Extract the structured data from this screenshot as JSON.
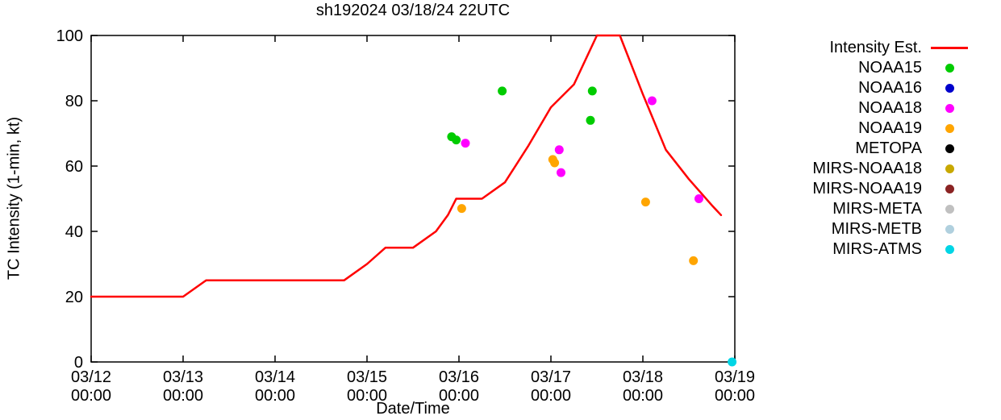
{
  "chart_data": {
    "type": "line+scatter",
    "title": "sh192024 03/18/24 22UTC",
    "xlabel": "Date/Time",
    "ylabel": "TC Intensity (1-min, kt)",
    "xlim": [
      0,
      7
    ],
    "ylim": [
      0,
      100
    ],
    "x_unit": "days since 03/12 00:00 UTC",
    "grid": "off",
    "legend_position": "right-outside",
    "x_ticks": [
      {
        "v": 0,
        "date": "03/12",
        "time": "00:00"
      },
      {
        "v": 1,
        "date": "03/13",
        "time": "00:00"
      },
      {
        "v": 2,
        "date": "03/14",
        "time": "00:00"
      },
      {
        "v": 3,
        "date": "03/15",
        "time": "00:00"
      },
      {
        "v": 4,
        "date": "03/16",
        "time": "00:00"
      },
      {
        "v": 5,
        "date": "03/17",
        "time": "00:00"
      },
      {
        "v": 6,
        "date": "03/18",
        "time": "00:00"
      },
      {
        "v": 7,
        "date": "03/19",
        "time": "00:00"
      }
    ],
    "y_ticks": [
      0,
      20,
      40,
      60,
      80,
      100
    ],
    "line_series": {
      "name": "Intensity Est.",
      "color": "#ff0000",
      "points": [
        [
          0,
          20
        ],
        [
          1.0,
          20
        ],
        [
          1.25,
          25
        ],
        [
          2.75,
          25
        ],
        [
          3.0,
          30
        ],
        [
          3.2,
          35
        ],
        [
          3.5,
          35
        ],
        [
          3.75,
          40
        ],
        [
          3.88,
          45
        ],
        [
          3.97,
          50
        ],
        [
          4.25,
          50
        ],
        [
          4.5,
          55
        ],
        [
          4.75,
          66
        ],
        [
          5.0,
          78
        ],
        [
          5.25,
          85
        ],
        [
          5.5,
          100
        ],
        [
          5.75,
          100
        ],
        [
          6.0,
          82
        ],
        [
          6.25,
          65
        ],
        [
          6.5,
          56
        ],
        [
          6.75,
          48
        ],
        [
          6.85,
          45
        ]
      ]
    },
    "scatter_series": [
      {
        "name": "NOAA15",
        "color": "#00cc00",
        "points": [
          [
            3.92,
            69
          ],
          [
            3.97,
            68
          ],
          [
            4.47,
            83
          ],
          [
            5.43,
            74
          ],
          [
            5.45,
            83
          ]
        ]
      },
      {
        "name": "NOAA16",
        "color": "#0000cc",
        "points": []
      },
      {
        "name": "NOAA18",
        "color": "#ff00ff",
        "points": [
          [
            4.07,
            67
          ],
          [
            5.09,
            65
          ],
          [
            5.11,
            58
          ],
          [
            6.1,
            80
          ],
          [
            6.61,
            50
          ]
        ]
      },
      {
        "name": "NOAA19",
        "color": "#ffa500",
        "points": [
          [
            4.03,
            47
          ],
          [
            5.02,
            62
          ],
          [
            5.04,
            61
          ],
          [
            6.03,
            49
          ],
          [
            6.55,
            31
          ]
        ]
      },
      {
        "name": "METOPA",
        "color": "#000000",
        "points": []
      },
      {
        "name": "MIRS-NOAA18",
        "color": "#c8a800",
        "points": []
      },
      {
        "name": "MIRS-NOAA19",
        "color": "#8b2323",
        "points": []
      },
      {
        "name": "MIRS-META",
        "color": "#c0c0c0",
        "points": []
      },
      {
        "name": "MIRS-METB",
        "color": "#b0d0de",
        "points": []
      },
      {
        "name": "MIRS-ATMS",
        "color": "#00d5e5",
        "points": [
          [
            6.97,
            0
          ]
        ]
      }
    ]
  }
}
